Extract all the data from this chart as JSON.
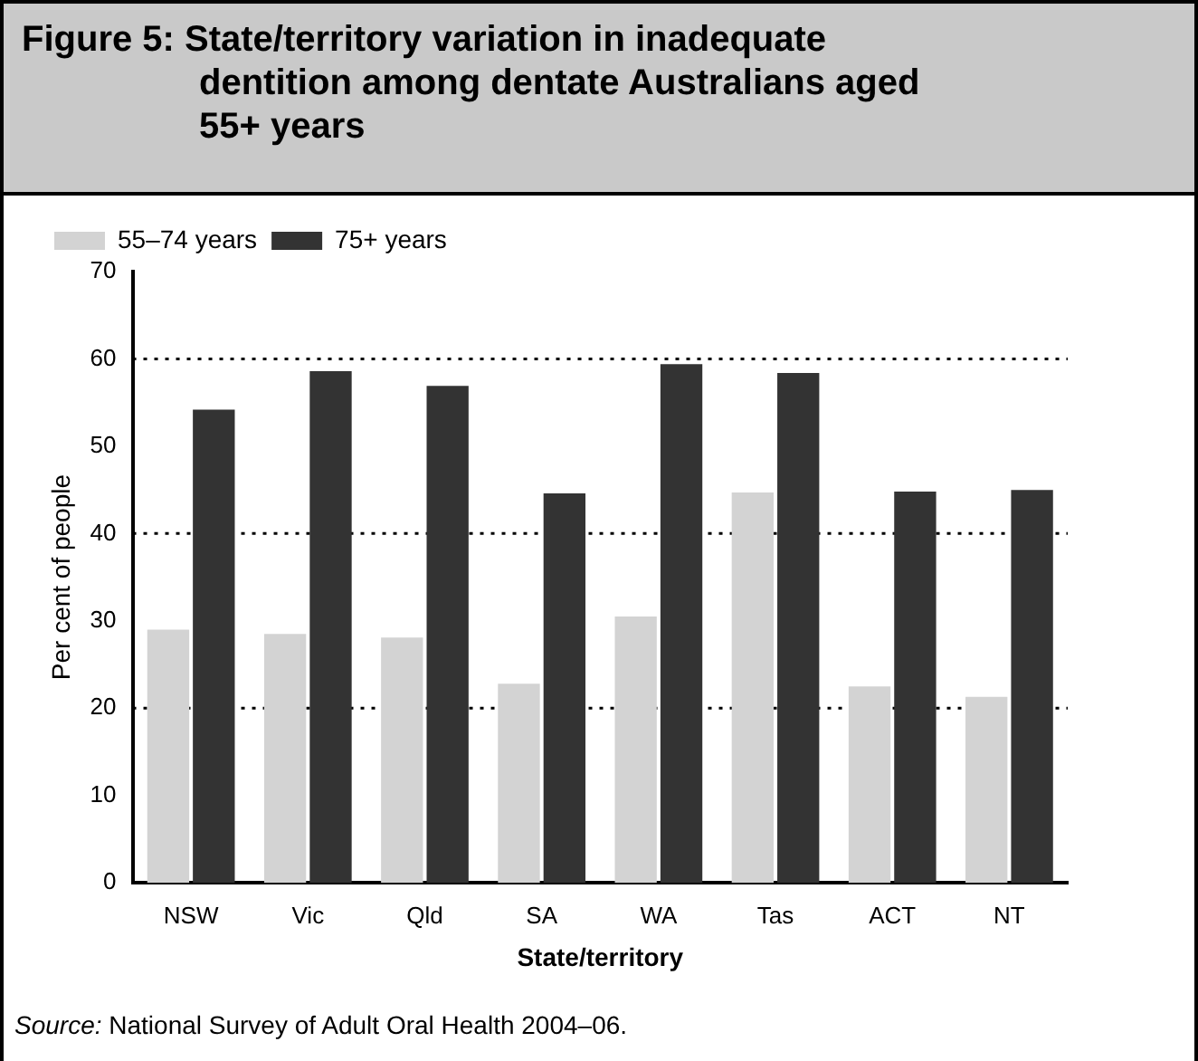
{
  "chart_data": {
    "type": "bar",
    "title": "Figure 5: State/territory variation in inadequate dentition among dentate Australians aged 55+ years",
    "xlabel": "State/territory",
    "ylabel": "Per cent of people",
    "categories": [
      "NSW",
      "Vic",
      "Qld",
      "SA",
      "WA",
      "Tas",
      "ACT",
      "NT"
    ],
    "series": [
      {
        "name": "55–74 years",
        "color": "#d3d3d3",
        "values": [
          29.0,
          28.5,
          28.1,
          22.8,
          30.5,
          44.7,
          22.5,
          21.3
        ]
      },
      {
        "name": "75+ years",
        "color": "#333333",
        "values": [
          54.2,
          58.6,
          56.9,
          44.6,
          59.4,
          58.4,
          44.8,
          45.0
        ]
      }
    ],
    "ylim": [
      0,
      70
    ],
    "yticks": [
      0,
      10,
      20,
      30,
      40,
      50,
      60,
      70
    ],
    "ref_lines": [
      {
        "axis": "y",
        "value": 20,
        "line_style": "dotted",
        "color": "#000000"
      },
      {
        "axis": "y",
        "value": 40,
        "line_style": "dotted",
        "color": "#000000"
      },
      {
        "axis": "y",
        "value": 60,
        "line_style": "dotted",
        "color": "#000000"
      }
    ],
    "legend": "top left",
    "grid": false,
    "annotations": [
      "Source: National Survey of Adult Oral Health 2004–06."
    ]
  }
}
